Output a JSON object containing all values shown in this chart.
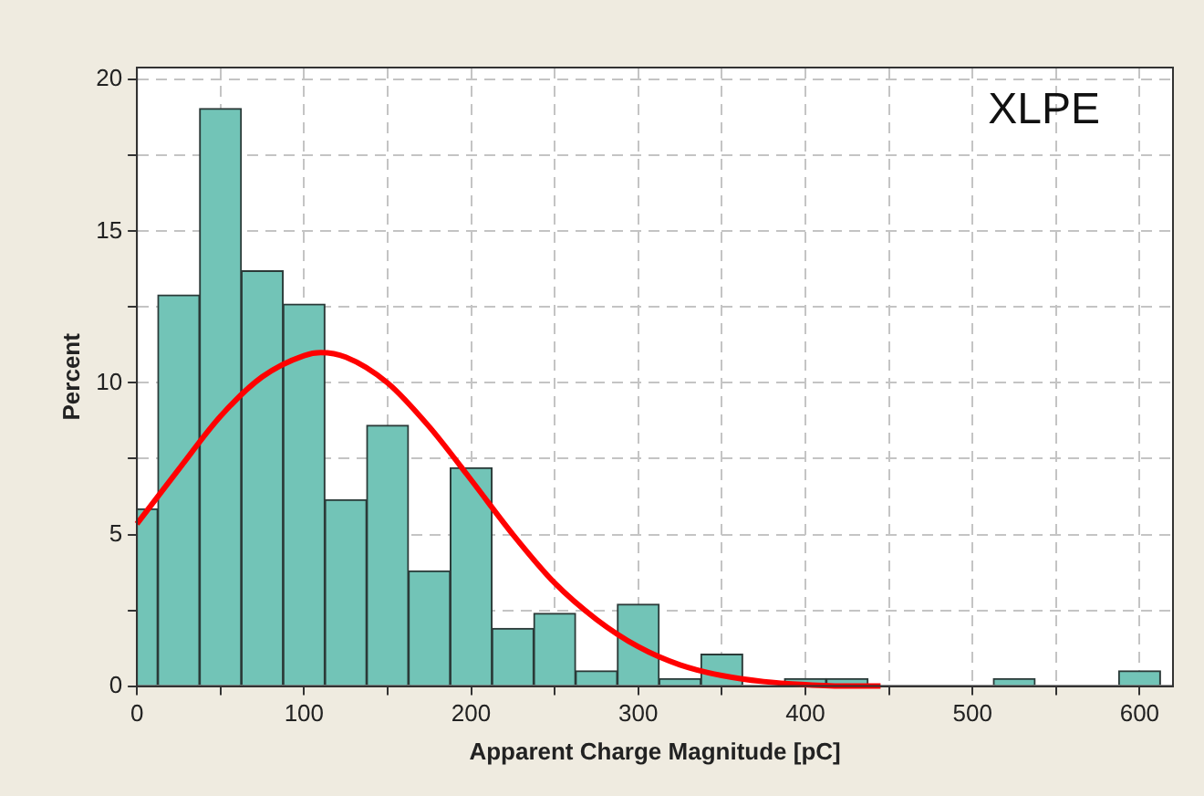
{
  "chart_data": {
    "type": "histogram",
    "xlabel": "Apparent Charge Magnitude [pC]",
    "ylabel": "Percent",
    "annotations": [
      "XLPE"
    ],
    "bins": [
      -12.5,
      12.5,
      37.5,
      62.5,
      87.5,
      112.5,
      137.5,
      162.5,
      187.5,
      212.5,
      237.5,
      262.5,
      287.5,
      312.5,
      337.5,
      362.5,
      387.5,
      412.5,
      437.5,
      462.5,
      487.5,
      512.5,
      537.5,
      562.5,
      587.5,
      612.5
    ],
    "values": [
      5.85,
      12.9,
      19.05,
      13.7,
      12.6,
      6.15,
      8.6,
      3.8,
      7.2,
      1.9,
      2.4,
      0.5,
      2.7,
      0.25,
      1.05,
      0,
      0.25,
      0.25,
      0,
      0,
      0,
      0.25,
      0,
      0,
      0.5
    ],
    "color": "#72c4b7",
    "series": [
      {
        "type": "line",
        "color": "#ff0000",
        "x": [
          0,
          25,
          50,
          75,
          100,
          110,
          125,
          150,
          175,
          200,
          225,
          250,
          275,
          300,
          325,
          350,
          375,
          400,
          425,
          445
        ],
        "values": [
          5.35,
          7.15,
          8.9,
          10.2,
          10.9,
          11,
          10.85,
          10,
          8.55,
          6.8,
          5,
          3.4,
          2.2,
          1.3,
          0.7,
          0.35,
          0.15,
          0.05,
          0,
          0
        ]
      }
    ],
    "xlim": [
      0,
      620
    ],
    "xticks": [
      0,
      {
        "value": 50,
        "label": null
      },
      100,
      {
        "value": 150,
        "label": null
      },
      200,
      {
        "value": 250,
        "label": null
      },
      300,
      {
        "value": 350,
        "label": null
      },
      400,
      {
        "value": 450,
        "label": null
      },
      500,
      {
        "value": 550,
        "label": null
      },
      600
    ],
    "ylim": [
      0,
      20.4
    ],
    "yticks": [
      0,
      {
        "value": 2.5,
        "label": null
      },
      5,
      {
        "value": 7.5,
        "label": null
      },
      10,
      {
        "value": 12.5,
        "label": null
      },
      15,
      {
        "value": 17.5,
        "label": null
      },
      20
    ],
    "grid": true,
    "line_style": "solid",
    "marker": "none",
    "legend": false
  }
}
